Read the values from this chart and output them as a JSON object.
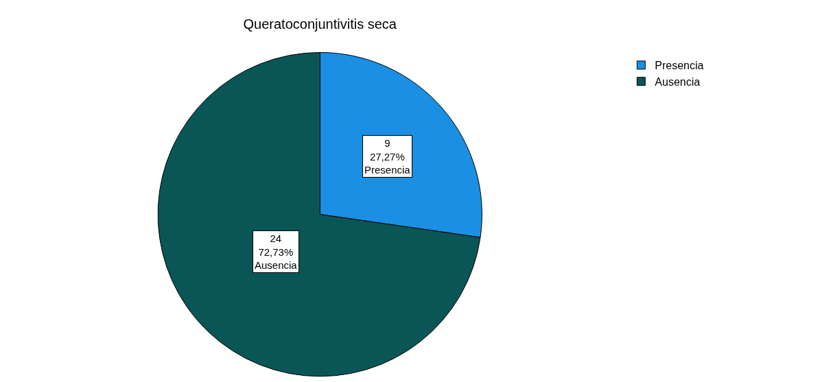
{
  "chart_data": {
    "type": "pie",
    "title": "Queratoconjuntivitis seca",
    "categories": [
      "Presencia",
      "Ausencia"
    ],
    "values": [
      9,
      24
    ],
    "colors": [
      "#1a8fe3",
      "#0a5656"
    ],
    "value_labels": [
      "9\n27,27%\nPresencia",
      "24\n72,73%\nAusencia"
    ],
    "legend": "top right"
  }
}
